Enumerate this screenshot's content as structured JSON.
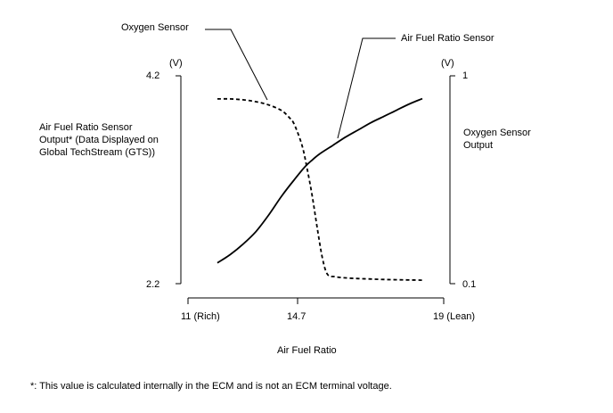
{
  "chart_data": {
    "type": "line",
    "title": "",
    "xlabel": "Air Fuel Ratio",
    "x_ticks": [
      "11 (Rich)",
      "14.7",
      "19 (Lean)"
    ],
    "xlim": [
      11,
      19
    ],
    "left_axis": {
      "label_lines": [
        "Air Fuel Ratio Sensor",
        "Output* (Data Displayed on",
        "Global TechStream (GTS))"
      ],
      "unit": "(V)",
      "ticks": [
        "4.2",
        "2.2"
      ],
      "ylim": [
        2.2,
        4.2
      ]
    },
    "right_axis": {
      "label_lines": [
        "Oxygen Sensor",
        "Output"
      ],
      "unit": "(V)",
      "ticks": [
        "1",
        "0.1"
      ],
      "ylim": [
        0.1,
        1
      ]
    },
    "series": [
      {
        "name": "Air Fuel Ratio Sensor",
        "axis": "left",
        "style": "solid",
        "x": [
          11.0,
          11.5,
          12.0,
          12.5,
          13.0,
          13.5,
          14.0,
          14.4,
          14.7,
          15.0,
          15.5,
          16.0,
          16.5,
          17.0,
          17.5,
          18.0,
          18.5,
          19.0
        ],
        "y": [
          2.4,
          2.48,
          2.58,
          2.7,
          2.86,
          3.04,
          3.2,
          3.32,
          3.39,
          3.45,
          3.53,
          3.61,
          3.68,
          3.75,
          3.81,
          3.87,
          3.93,
          3.98
        ]
      },
      {
        "name": "Oxygen Sensor",
        "axis": "right",
        "style": "dashed",
        "x": [
          11.0,
          11.5,
          12.0,
          12.5,
          13.0,
          13.5,
          13.8,
          14.0,
          14.3,
          14.5,
          14.7,
          14.9,
          15.1,
          15.3,
          15.6,
          16.0,
          16.5,
          17.0,
          17.5,
          18.0,
          18.5,
          19.0
        ],
        "y": [
          0.9,
          0.9,
          0.896,
          0.888,
          0.874,
          0.85,
          0.82,
          0.79,
          0.7,
          0.6,
          0.48,
          0.34,
          0.21,
          0.14,
          0.13,
          0.125,
          0.122,
          0.12,
          0.118,
          0.117,
          0.116,
          0.115
        ]
      }
    ],
    "annotations": [
      "Oxygen Sensor",
      "Air Fuel Ratio Sensor"
    ],
    "footnote": "*: This value is calculated internally in the ECM and is not an ECM terminal voltage.",
    "legend": "none",
    "grid": false
  }
}
